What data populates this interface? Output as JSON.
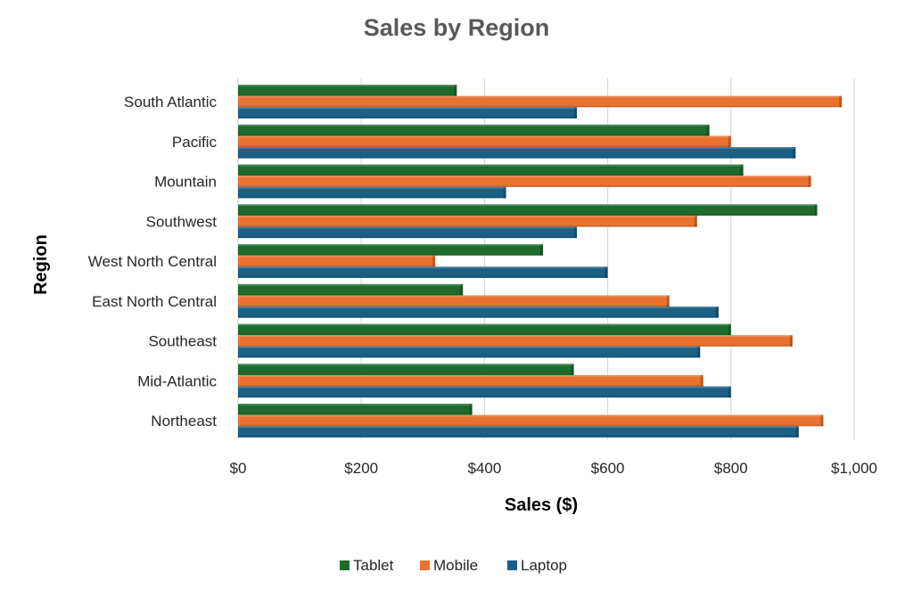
{
  "chart_data": {
    "type": "bar",
    "orientation": "horizontal",
    "title": "Sales by Region",
    "xlabel": "Sales ($)",
    "ylabel": "Region",
    "xlim": [
      0,
      1000
    ],
    "x_ticks": [
      "$0",
      "$200",
      "$400",
      "$600",
      "$800",
      "$1,000"
    ],
    "grid": true,
    "legend_position": "bottom",
    "categories": [
      "South Atlantic",
      "Pacific",
      "Mountain",
      "Southwest",
      "West North Central",
      "East North Central",
      "Southeast",
      "Mid-Atlantic",
      "Northeast"
    ],
    "series": [
      {
        "name": "Tablet",
        "color": "#1e6b2c",
        "values": [
          355,
          765,
          820,
          940,
          495,
          365,
          800,
          545,
          380
        ]
      },
      {
        "name": "Mobile",
        "color": "#e8722f",
        "values": [
          980,
          800,
          930,
          745,
          320,
          700,
          900,
          755,
          950
        ]
      },
      {
        "name": "Laptop",
        "color": "#1b5f84",
        "values": [
          550,
          905,
          435,
          550,
          600,
          780,
          750,
          800,
          910
        ]
      }
    ]
  }
}
